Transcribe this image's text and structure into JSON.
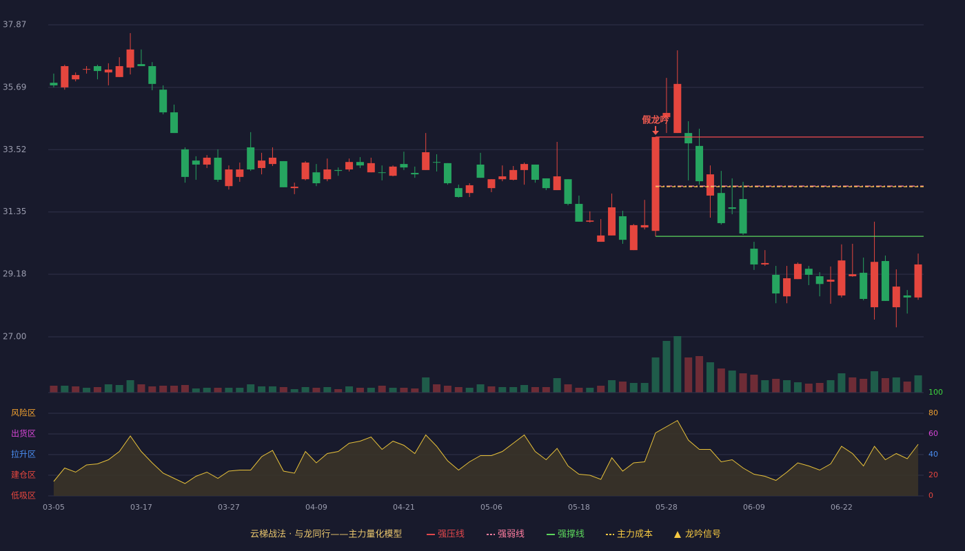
{
  "chart_data": [
    {
      "type": "candlestick",
      "categories": [
        "03-05",
        null,
        null,
        null,
        null,
        null,
        null,
        null,
        "03-17",
        null,
        null,
        null,
        null,
        null,
        null,
        null,
        "03-27",
        null,
        null,
        null,
        null,
        null,
        null,
        null,
        "04-09",
        null,
        null,
        null,
        null,
        null,
        null,
        null,
        "04-21",
        null,
        null,
        null,
        null,
        null,
        null,
        null,
        "05-06",
        null,
        null,
        null,
        null,
        null,
        null,
        null,
        "05-18",
        null,
        null,
        null,
        null,
        null,
        null,
        null,
        "05-28",
        null,
        null,
        null,
        null,
        null,
        null,
        null,
        "06-09",
        null,
        null,
        null,
        null,
        null,
        null,
        null,
        "06-22",
        null,
        null,
        null,
        null,
        null,
        null,
        null
      ],
      "open": [
        35.85,
        35.69,
        35.97,
        36.31,
        36.43,
        36.21,
        36.05,
        36.38,
        36.5,
        36.43,
        35.61,
        34.82,
        33.53,
        33.14,
        33.0,
        33.24,
        32.25,
        32.57,
        33.6,
        32.88,
        33.02,
        33.12,
        32.18,
        32.49,
        32.73,
        32.49,
        32.81,
        32.83,
        33.09,
        32.73,
        32.73,
        32.61,
        33.02,
        32.71,
        32.81,
        33.09,
        33.05,
        32.18,
        32.01,
        33.0,
        32.18,
        32.49,
        32.47,
        32.81,
        33.0,
        32.52,
        32.11,
        32.49,
        31.63,
        31.01,
        30.31,
        30.53,
        31.2,
        30.02,
        30.81,
        30.69,
        34.65,
        34.1,
        34.1,
        33.65,
        31.92,
        32.01,
        31.51,
        31.8,
        30.07,
        29.52,
        29.16,
        28.41,
        29.01,
        29.37,
        29.11,
        28.92,
        28.44,
        29.11,
        29.23,
        28.03,
        29.64,
        28.03,
        28.44,
        28.37
      ],
      "high": [
        36.17,
        36.48,
        36.21,
        36.43,
        36.48,
        36.53,
        36.74,
        37.58,
        37.01,
        36.57,
        35.76,
        35.09,
        33.6,
        33.29,
        33.33,
        33.53,
        32.97,
        33.07,
        34.13,
        33.41,
        33.6,
        33.12,
        32.37,
        33.12,
        33.02,
        33.21,
        32.9,
        33.21,
        33.26,
        33.24,
        32.97,
        32.97,
        33.45,
        32.93,
        34.1,
        33.36,
        33.05,
        32.3,
        32.35,
        33.41,
        32.49,
        32.97,
        32.95,
        33.07,
        33.0,
        32.52,
        33.79,
        32.49,
        31.92,
        31.37,
        31.1,
        31.99,
        31.39,
        30.93,
        31.77,
        33.96,
        36.02,
        36.98,
        34.51,
        34.25,
        32.97,
        32.78,
        32.52,
        32.4,
        30.31,
        30.02,
        29.47,
        29.47,
        29.59,
        29.47,
        29.25,
        29.45,
        30.22,
        30.24,
        29.76,
        31.01,
        29.83,
        29.35,
        28.63,
        29.9
      ],
      "low": [
        35.69,
        35.61,
        35.9,
        36.17,
        35.97,
        35.76,
        36.05,
        36.14,
        36.43,
        35.59,
        34.75,
        34.1,
        32.37,
        32.47,
        32.88,
        32.4,
        32.13,
        32.4,
        32.78,
        32.66,
        32.95,
        32.21,
        31.97,
        32.45,
        32.25,
        32.42,
        32.61,
        32.76,
        32.88,
        32.73,
        32.45,
        32.59,
        32.81,
        32.54,
        32.81,
        32.76,
        32.3,
        31.85,
        31.87,
        32.54,
        32.04,
        32.42,
        32.45,
        32.3,
        32.37,
        32.11,
        32.11,
        31.58,
        31.01,
        30.98,
        30.31,
        30.53,
        30.24,
        30.02,
        30.74,
        30.5,
        34.1,
        34.1,
        32.45,
        32.3,
        31.15,
        30.91,
        31.27,
        30.55,
        29.33,
        29.47,
        28.17,
        28.17,
        29.01,
        28.8,
        28.41,
        28.15,
        28.37,
        29.09,
        28.27,
        27.6,
        28.25,
        27.33,
        27.81,
        28.29
      ],
      "close": [
        35.76,
        36.43,
        36.12,
        36.33,
        36.26,
        36.31,
        36.43,
        37.01,
        36.43,
        35.81,
        34.82,
        34.1,
        32.57,
        33.0,
        33.24,
        32.47,
        32.83,
        32.83,
        32.83,
        33.14,
        33.24,
        32.21,
        32.23,
        33.07,
        32.35,
        32.83,
        32.78,
        33.09,
        32.97,
        33.05,
        32.71,
        32.93,
        32.9,
        32.66,
        33.43,
        33.07,
        32.35,
        31.87,
        32.28,
        32.54,
        32.49,
        32.59,
        32.81,
        33.02,
        32.47,
        32.18,
        32.59,
        31.63,
        31.01,
        31.05,
        30.53,
        31.51,
        30.38,
        30.89,
        30.89,
        33.96,
        34.8,
        35.81,
        33.74,
        32.42,
        32.66,
        30.96,
        31.46,
        30.6,
        29.52,
        29.57,
        28.51,
        29.04,
        29.54,
        29.16,
        28.84,
        28.99,
        29.66,
        29.18,
        28.32,
        29.61,
        28.25,
        28.75,
        28.37,
        29.52
      ],
      "up_color": "#e5463e",
      "down_color": "#26a560",
      "ylim": [
        27,
        37.87
      ],
      "yticks": [
        {
          "value": 27,
          "label": "27.00"
        },
        29.18,
        31.35,
        33.52,
        35.69,
        37.87
      ],
      "grid": true,
      "levels": [
        {
          "name": "强压线",
          "value": 33.96,
          "start": 55,
          "color": "#e0474c",
          "style": "solid"
        },
        {
          "name": "强弱线",
          "value": 32.25,
          "start": 55,
          "color": "#ff7ea0",
          "style": "dashdot"
        },
        {
          "name": "强撑线",
          "value": 30.5,
          "start": 55,
          "color": "#5cd65c",
          "style": "solid"
        },
        {
          "name": "主力成本",
          "value": 32.23,
          "start": 55,
          "color": "#f5c842",
          "style": "dashed"
        }
      ],
      "signal": {
        "name": "龙吟信号",
        "color": "#f5c842",
        "annotations": [
          {
            "index": 55,
            "label": "假龙吟",
            "color": "#ef5a50"
          }
        ]
      },
      "legend_title": "云梯战法 · 与龙同行——主力量化模型"
    },
    {
      "type": "bar",
      "values": [
        10,
        10,
        9,
        7,
        8,
        12,
        11,
        18,
        12,
        9,
        10,
        10,
        11,
        6,
        7,
        7,
        7,
        7,
        12,
        9,
        9,
        8,
        5,
        8,
        7,
        8,
        5,
        9,
        7,
        7,
        10,
        7,
        7,
        6,
        22,
        12,
        10,
        8,
        7,
        12,
        9,
        8,
        8,
        11,
        8,
        8,
        21,
        12,
        7,
        7,
        10,
        18,
        16,
        14,
        14,
        51,
        75,
        82,
        51,
        53,
        44,
        35,
        32,
        28,
        26,
        18,
        20,
        18,
        15,
        13,
        14,
        18,
        28,
        22,
        20,
        31,
        21,
        22,
        16,
        25
      ],
      "up_color": "#1f5c4a",
      "down_color": "#6e2c36"
    },
    {
      "type": "line",
      "values": [
        14,
        27,
        23,
        30,
        31,
        35,
        43,
        58,
        43,
        32,
        22,
        17,
        12,
        19,
        23,
        17,
        24,
        25,
        25,
        38,
        44,
        24,
        22,
        43,
        32,
        41,
        43,
        51,
        53,
        57,
        45,
        53,
        49,
        41,
        59,
        48,
        34,
        25,
        33,
        39,
        39,
        43,
        51,
        59,
        43,
        35,
        46,
        29,
        21,
        20,
        16,
        37,
        24,
        32,
        33,
        61,
        67,
        73,
        54,
        45,
        45,
        33,
        35,
        27,
        21,
        19,
        15,
        23,
        32,
        29,
        25,
        31,
        48,
        41,
        29,
        48,
        35,
        41,
        36,
        50
      ],
      "color": "#e8c23a",
      "fill": "#3a3328",
      "ylim": [
        0,
        100
      ],
      "yticks": [
        0,
        20,
        40,
        60,
        80,
        100
      ],
      "tick_colors": [
        "#e5463e",
        "#e5463e",
        "#4a8df0",
        "#d646d6",
        "#f0a030",
        "#3ed63e"
      ],
      "zones": [
        {
          "value": 0,
          "label": "低吸区",
          "color": "#e5463e"
        },
        {
          "value": 20,
          "label": "建仓区",
          "color": "#e5463e"
        },
        {
          "value": 40,
          "label": "拉升区",
          "color": "#4a8df0"
        },
        {
          "value": 60,
          "label": "出货区",
          "color": "#d646d6"
        },
        {
          "value": 80,
          "label": "风险区",
          "color": "#f0a030"
        }
      ]
    }
  ]
}
